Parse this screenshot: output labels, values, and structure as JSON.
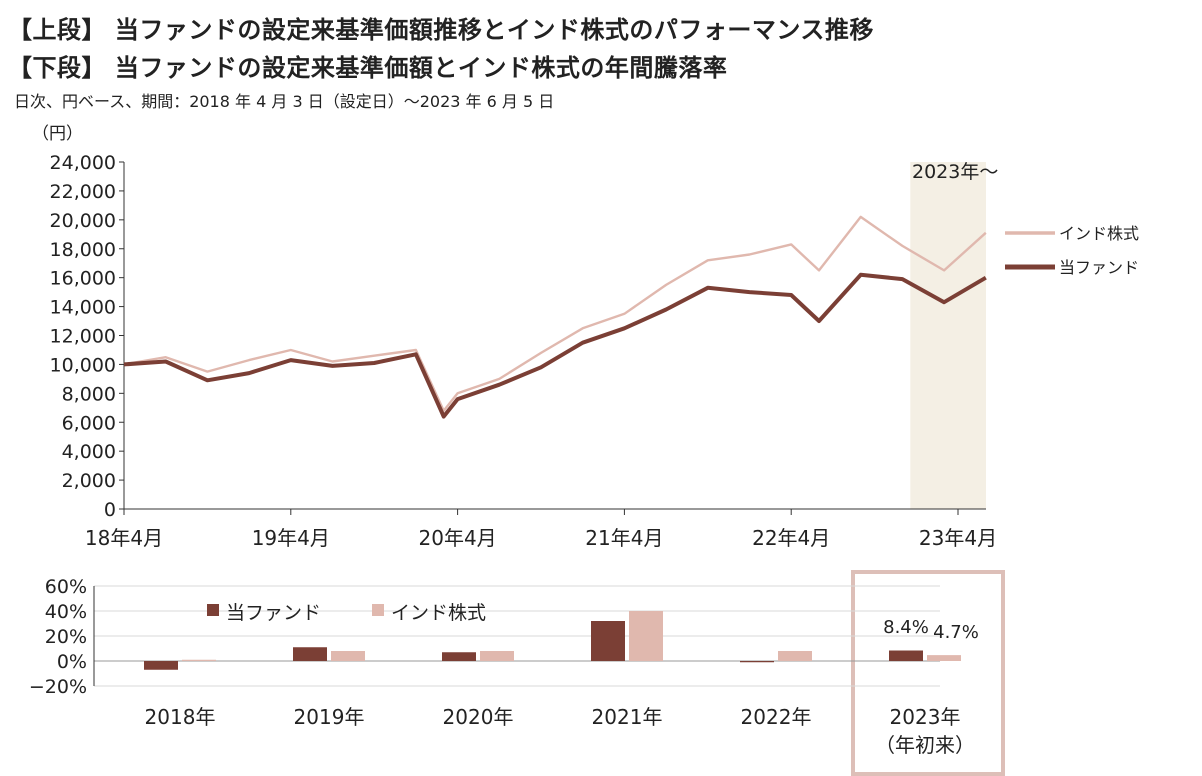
{
  "titles": {
    "top": "【上段】 当ファンドの設定来基準価額推移とインド株式のパフォーマンス推移",
    "bottom": "【下段】 当ファンドの設定来基準価額とインド株式の年間騰落率",
    "subtitle": "日次、円ベース、期間：2018 年 4 月 3 日（設定日）～2023 年 6 月 5 日"
  },
  "colors": {
    "fund": "#7b3f35",
    "india": "#e0b8ae",
    "shade": "#f4efe4",
    "box": "#ddbfb8"
  },
  "chart_data": [
    {
      "type": "line",
      "yunit": "（円）",
      "ylim": [
        0,
        24000
      ],
      "yticks": [
        "24,000",
        "22,000",
        "20,000",
        "18,000",
        "16,000",
        "14,000",
        "12,000",
        "10,000",
        "8,000",
        "6,000",
        "4,000",
        "2,000",
        "0"
      ],
      "xticks": [
        "18年4月",
        "19年4月",
        "20年4月",
        "21年4月",
        "22年4月",
        "23年4月"
      ],
      "shaded_region_label": "2023年～",
      "x": [
        "2018-04",
        "2018-07",
        "2018-10",
        "2019-01",
        "2019-04",
        "2019-07",
        "2019-10",
        "2020-01",
        "2020-03",
        "2020-04",
        "2020-07",
        "2020-10",
        "2021-01",
        "2021-04",
        "2021-07",
        "2021-10",
        "2022-01",
        "2022-04",
        "2022-06",
        "2022-09",
        "2022-12",
        "2023-03",
        "2023-06"
      ],
      "series": [
        {
          "name": "インド株式",
          "values": [
            10000,
            10500,
            9500,
            10300,
            11000,
            10200,
            10600,
            11000,
            6800,
            8000,
            9000,
            10800,
            12500,
            13500,
            15500,
            17200,
            17600,
            18300,
            16500,
            20200,
            18200,
            16500,
            19100
          ]
        },
        {
          "name": "当ファンド",
          "values": [
            10000,
            10200,
            8900,
            9400,
            10300,
            9900,
            10100,
            10700,
            6400,
            7600,
            8600,
            9800,
            11500,
            12500,
            13800,
            15300,
            15000,
            14800,
            13000,
            16200,
            15900,
            14300,
            16000
          ]
        }
      ],
      "legend": [
        "インド株式",
        "当ファンド"
      ]
    },
    {
      "type": "bar",
      "ylim": [
        -20,
        60
      ],
      "yticks": [
        "60%",
        "40%",
        "20%",
        "0%",
        "−20%"
      ],
      "categories": [
        "2018年",
        "2019年",
        "2020年",
        "2021年",
        "2022年",
        "2023年"
      ],
      "category_sublabel": "（年初来）",
      "series": [
        {
          "name": "当ファンド",
          "values": [
            -7,
            11,
            7,
            32,
            -1,
            8.4
          ]
        },
        {
          "name": "インド株式",
          "values": [
            1,
            8,
            8,
            40,
            8,
            4.7
          ]
        }
      ],
      "data_labels": [
        "8.4%",
        "4.7%"
      ]
    }
  ]
}
